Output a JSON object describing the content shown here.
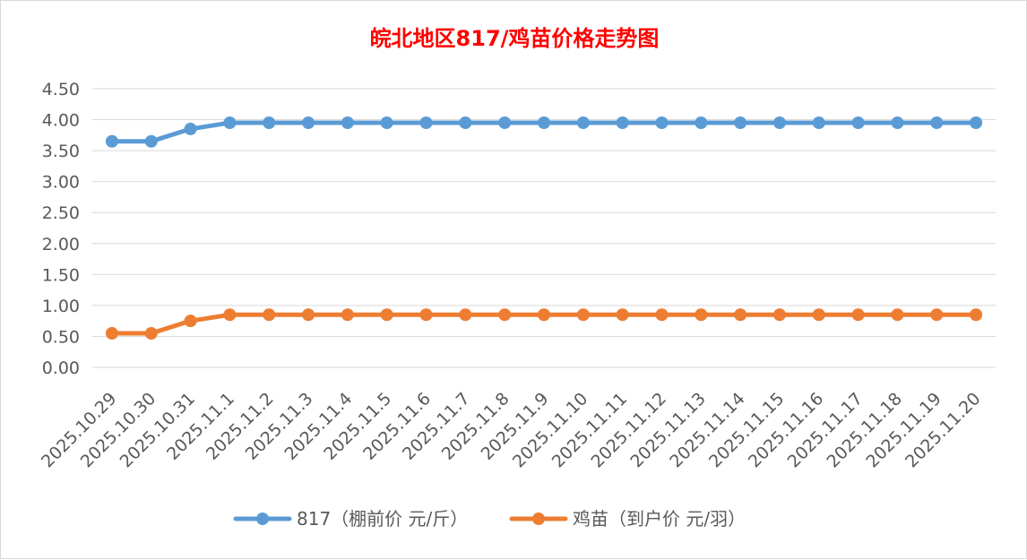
{
  "chart_data": {
    "type": "line",
    "title": "皖北地区817/鸡苗价格走势图",
    "xlabel": "",
    "ylabel": "",
    "categories": [
      "2025.10.29",
      "2025.10.30",
      "2025.10.31",
      "2025.11.1",
      "2025.11.2",
      "2025.11.3",
      "2025.11.4",
      "2025.11.5",
      "2025.11.6",
      "2025.11.7",
      "2025.11.8",
      "2025.11.9",
      "2025.11.10",
      "2025.11.11",
      "2025.11.12",
      "2025.11.13",
      "2025.11.14",
      "2025.11.15",
      "2025.11.16",
      "2025.11.17",
      "2025.11.18",
      "2025.11.19",
      "2025.11.20"
    ],
    "yticks": [
      "0.00",
      "0.50",
      "1.00",
      "1.50",
      "2.00",
      "2.50",
      "3.00",
      "3.50",
      "4.00",
      "4.50"
    ],
    "ylim": [
      0,
      4.5
    ],
    "grid": true,
    "legend_position": "bottom",
    "series": [
      {
        "name": "817（棚前价 元/斤）",
        "color": "#5b9bd5",
        "values": [
          3.65,
          3.65,
          3.85,
          3.95,
          3.95,
          3.95,
          3.95,
          3.95,
          3.95,
          3.95,
          3.95,
          3.95,
          3.95,
          3.95,
          3.95,
          3.95,
          3.95,
          3.95,
          3.95,
          3.95,
          3.95,
          3.95,
          3.95
        ]
      },
      {
        "name": "鸡苗（到户价 元/羽）",
        "color": "#ed7d31",
        "values": [
          0.55,
          0.55,
          0.75,
          0.85,
          0.85,
          0.85,
          0.85,
          0.85,
          0.85,
          0.85,
          0.85,
          0.85,
          0.85,
          0.85,
          0.85,
          0.85,
          0.85,
          0.85,
          0.85,
          0.85,
          0.85,
          0.85,
          0.85
        ]
      }
    ]
  }
}
